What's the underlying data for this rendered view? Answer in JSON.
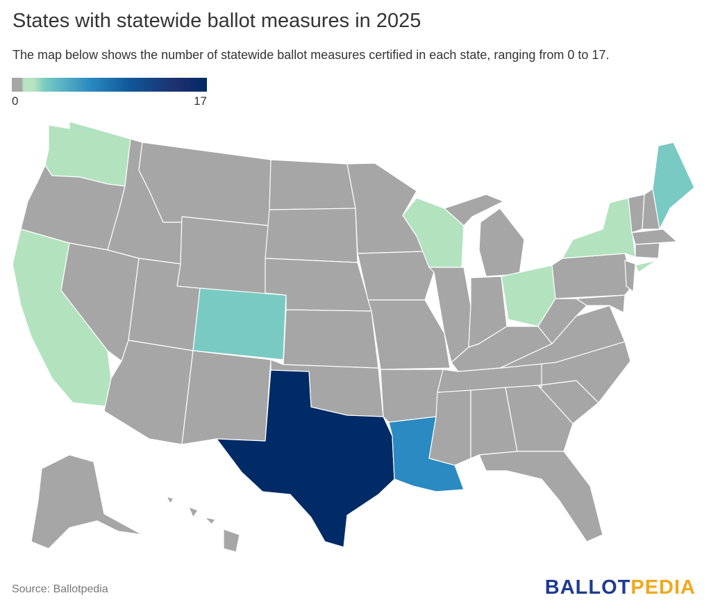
{
  "title": "States with statewide ballot measures in 2025",
  "subtitle": "The map below shows the number of statewide ballot measures certified in each state, ranging from 0 to 17.",
  "legend": {
    "min_label": "0",
    "max_label": "17"
  },
  "source": "Source: Ballotpedia",
  "logo": {
    "part1": "BALLOT",
    "part2": "PEDIA"
  },
  "colors": {
    "zero": "#a6a6a6",
    "light_green": "#b3e2bf",
    "teal": "#79cac3",
    "blue": "#2b8ac1",
    "navy": "#002b66",
    "logo_blue": "#1f3a8f",
    "logo_gold": "#f0a81c"
  }
}
